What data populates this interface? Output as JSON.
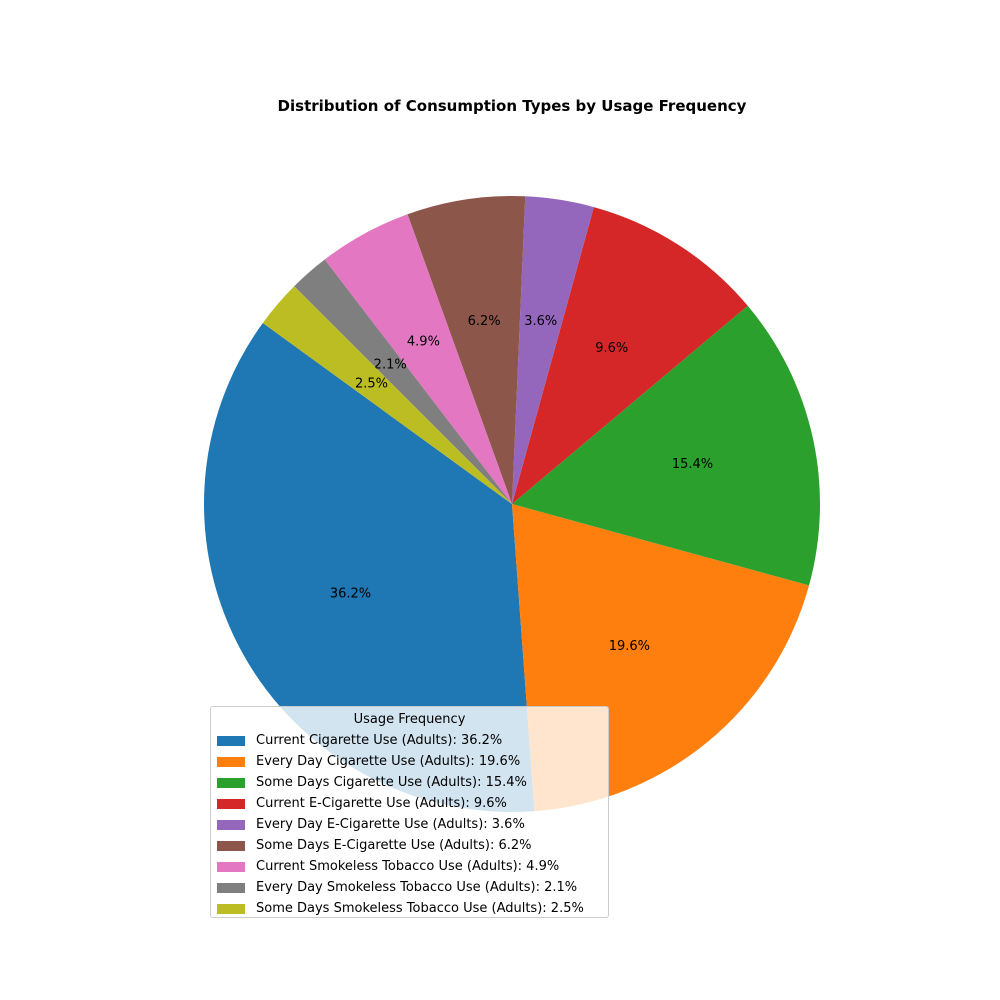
{
  "chart_data": {
    "type": "pie",
    "title": "Distribution of Consumption Types by Usage Frequency",
    "slices": [
      {
        "label": "Current Cigarette Use (Adults)",
        "value": 36.2,
        "pct_label": "36.2%",
        "legend_label": "Current Cigarette Use (Adults): 36.2%",
        "color": "#1f77b4"
      },
      {
        "label": "Every Day Cigarette Use (Adults)",
        "value": 19.6,
        "pct_label": "19.6%",
        "legend_label": "Every Day Cigarette Use (Adults): 19.6%",
        "color": "#ff7f0e"
      },
      {
        "label": "Some Days Cigarette Use (Adults)",
        "value": 15.4,
        "pct_label": "15.4%",
        "legend_label": "Some Days Cigarette Use (Adults): 15.4%",
        "color": "#2ca02c"
      },
      {
        "label": "Current E-Cigarette Use (Adults)",
        "value": 9.6,
        "pct_label": "9.6%",
        "legend_label": "Current E-Cigarette Use (Adults): 9.6%",
        "color": "#d62728"
      },
      {
        "label": "Every Day E-Cigarette Use (Adults)",
        "value": 3.6,
        "pct_label": "3.6%",
        "legend_label": "Every Day E-Cigarette Use (Adults): 3.6%",
        "color": "#9467bd"
      },
      {
        "label": "Some Days E-Cigarette Use (Adults)",
        "value": 6.2,
        "pct_label": "6.2%",
        "legend_label": "Some Days E-Cigarette Use (Adults): 6.2%",
        "color": "#8c564b"
      },
      {
        "label": "Current Smokeless Tobacco Use (Adults)",
        "value": 4.9,
        "pct_label": "4.9%",
        "legend_label": "Current Smokeless Tobacco Use (Adults): 4.9%",
        "color": "#e377c2"
      },
      {
        "label": "Every Day Smokeless Tobacco Use (Adults)",
        "value": 2.1,
        "pct_label": "2.1%",
        "legend_label": "Every Day Smokeless Tobacco Use (Adults): 2.1%",
        "color": "#7f7f7f"
      },
      {
        "label": "Some Days Smokeless Tobacco Use (Adults)",
        "value": 2.5,
        "pct_label": "2.5%",
        "legend_label": "Some Days Smokeless Tobacco Use (Adults): 2.5%",
        "color": "#bcbd22"
      }
    ],
    "start_angle_deg": 144,
    "direction": "counterclockwise",
    "legend": {
      "title": "Usage Frequency",
      "placement": "lower-center"
    }
  }
}
